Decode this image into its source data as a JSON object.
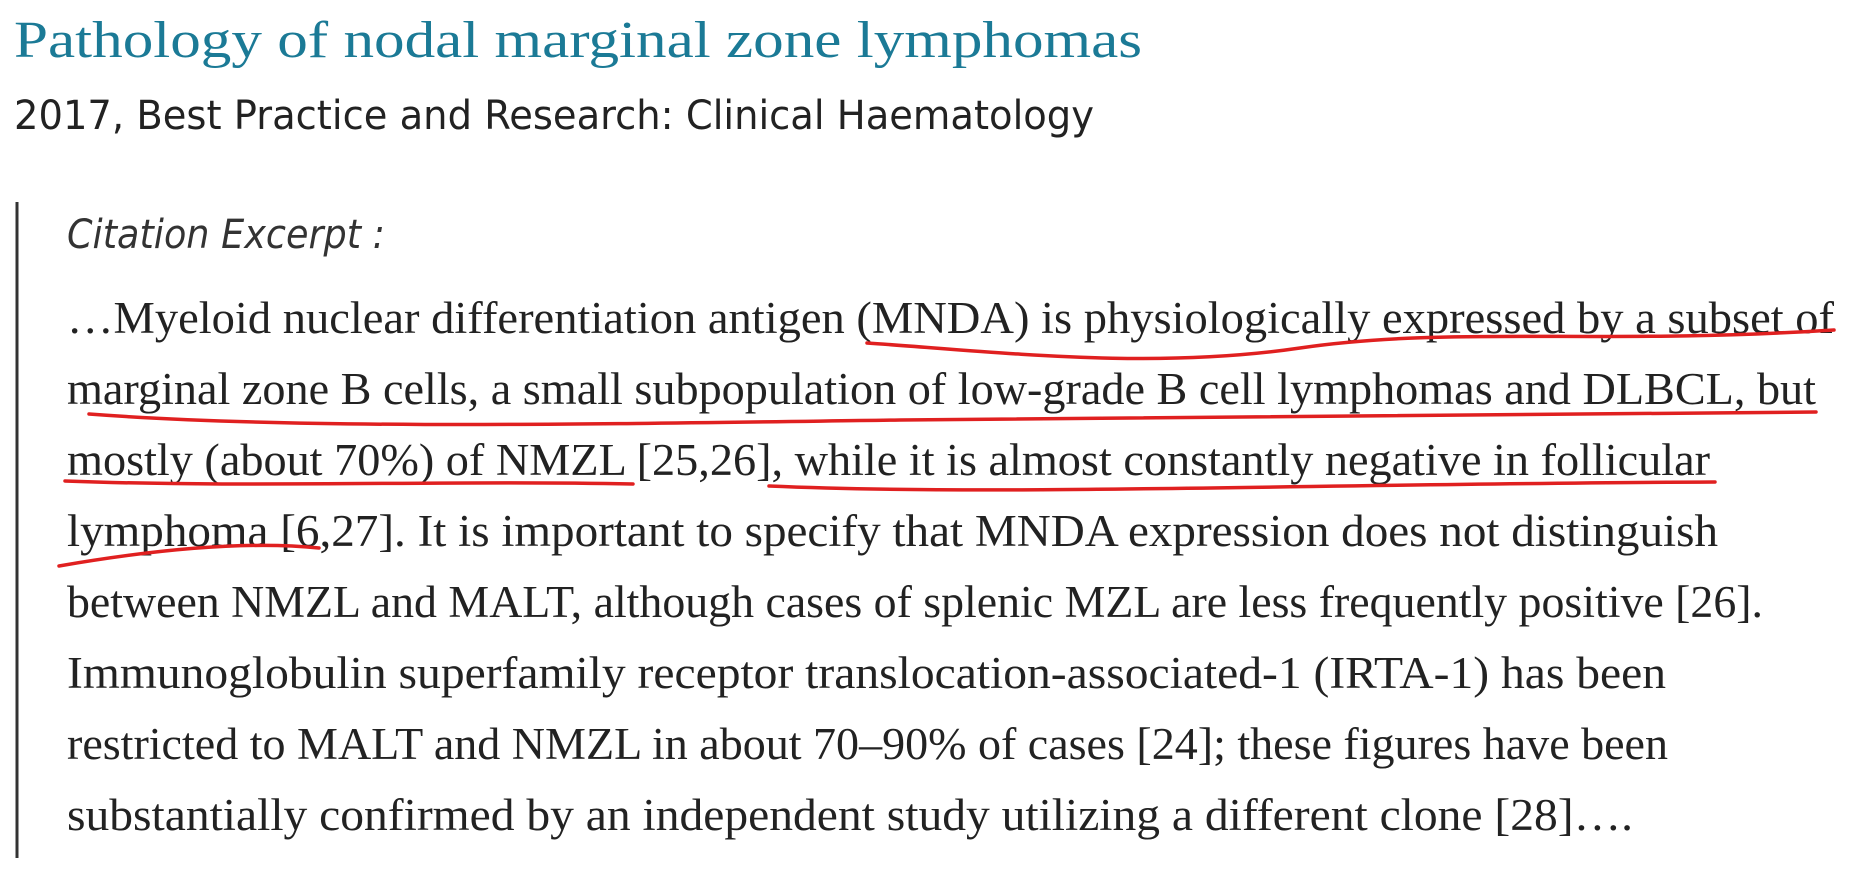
{
  "header": {
    "title": "Pathology of nodal marginal zone lymphomas",
    "source": "2017, Best Practice and Research: Clinical Haematology"
  },
  "excerpt": {
    "label": "Citation Excerpt :",
    "lines": [
      "…Myeloid nuclear differentiation antigen (MNDA) is physiologically expressed by a subset of",
      "marginal zone B cells, a small subpopulation of low-grade B cell lymphomas and DLBCL, but",
      "mostly (about 70%) of NMZL [25,26], while it is almost constantly negative in follicular",
      "lymphoma [6,27]. It is important to specify that MNDA expression does not distinguish",
      "between NMZL and MALT, although cases of splenic MZL are less frequently positive [26].",
      "Immunoglobulin superfamily receptor translocation-associated-1 (IRTA-1) has been",
      "restricted to MALT and NMZL in about 70–90% of cases [24]; these figures have been",
      "substantially confirmed by an independent study utilizing a different clone [28]…."
    ]
  }
}
